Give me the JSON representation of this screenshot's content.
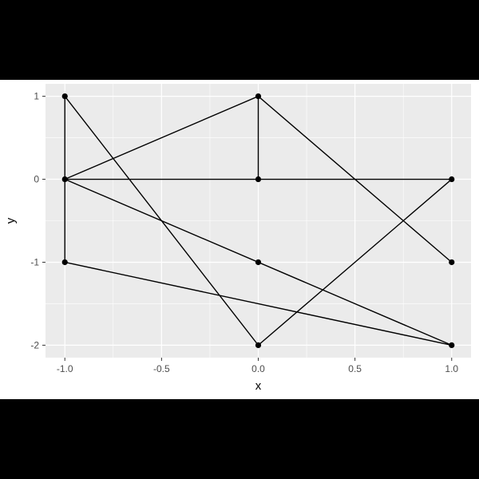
{
  "chart_data": {
    "type": "line",
    "title": "",
    "xlabel": "x",
    "ylabel": "y",
    "xlim": [
      -1.1,
      1.1
    ],
    "ylim": [
      -2.15,
      1.15
    ],
    "x_ticks": [
      -1.0,
      -0.5,
      0.0,
      0.5,
      1.0
    ],
    "x_tick_labels": [
      "-1.0",
      "-0.5",
      "0.0",
      "0.5",
      "1.0"
    ],
    "y_ticks": [
      -2,
      -1,
      0,
      1
    ],
    "y_tick_labels": [
      "-2",
      "-1",
      "0",
      "1"
    ],
    "grid": true,
    "panel_background": "#ebebeb",
    "grid_color": "#ffffff",
    "line_color": "#000000",
    "path": [
      {
        "x": 0,
        "y": 0
      },
      {
        "x": 1,
        "y": 0
      },
      {
        "x": 0,
        "y": -2
      },
      {
        "x": -1,
        "y": 1
      },
      {
        "x": -1,
        "y": -1
      },
      {
        "x": 1,
        "y": -2
      },
      {
        "x": -1,
        "y": 0
      },
      {
        "x": 0,
        "y": 1
      },
      {
        "x": 0,
        "y": 0
      },
      {
        "x": -1,
        "y": 0
      }
    ],
    "extra_segments": [
      [
        {
          "x": 0,
          "y": 1
        },
        {
          "x": 1,
          "y": -1
        }
      ]
    ],
    "points": [
      {
        "x": -1,
        "y": 1
      },
      {
        "x": -1,
        "y": 0
      },
      {
        "x": -1,
        "y": -1
      },
      {
        "x": 0,
        "y": 1
      },
      {
        "x": 0,
        "y": 0
      },
      {
        "x": 0,
        "y": -1
      },
      {
        "x": 0,
        "y": -2
      },
      {
        "x": 1,
        "y": 0
      },
      {
        "x": 1,
        "y": -1
      },
      {
        "x": 1,
        "y": -2
      }
    ]
  }
}
